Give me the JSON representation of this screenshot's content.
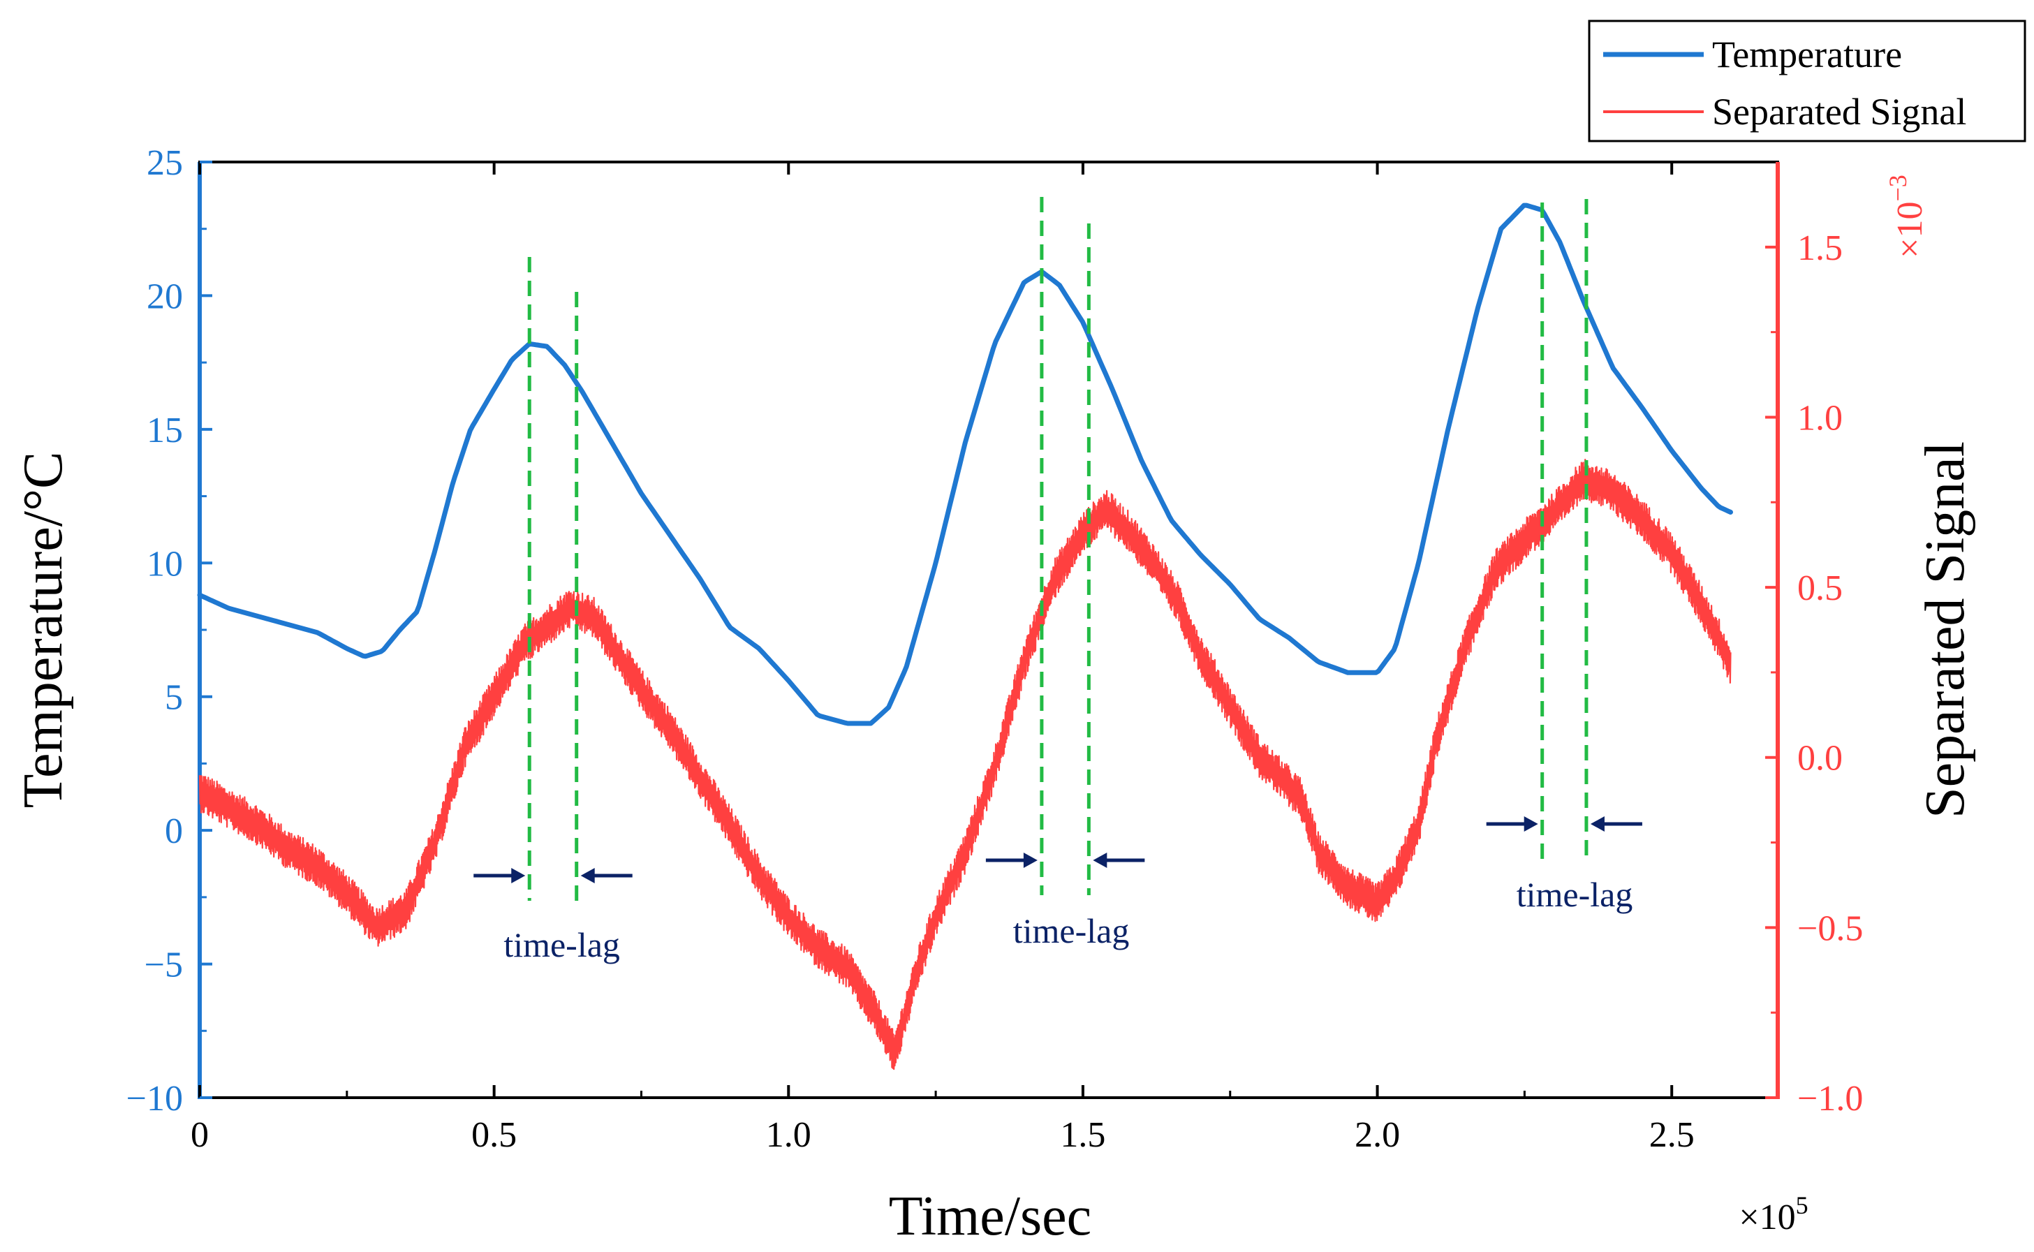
{
  "chart_data": {
    "type": "line",
    "xlabel": "Time/sec",
    "x_multiplier": "×10",
    "x_multiplier_exp": "5",
    "xlim": [
      0,
      2.68
    ],
    "x_ticks": [
      {
        "value": 0,
        "label": "0"
      },
      {
        "value": 0.5,
        "label": "0.5"
      },
      {
        "value": 1.0,
        "label": "1.0"
      },
      {
        "value": 1.5,
        "label": "1.5"
      },
      {
        "value": 2.0,
        "label": "2.0"
      },
      {
        "value": 2.5,
        "label": "2.5"
      }
    ],
    "y_left": {
      "label": "Temperature/°C",
      "lim": [
        -10,
        25
      ],
      "ticks": [
        {
          "value": -10,
          "label": "−10"
        },
        {
          "value": -5,
          "label": "−5"
        },
        {
          "value": 0,
          "label": "0"
        },
        {
          "value": 5,
          "label": "5"
        },
        {
          "value": 10,
          "label": "10"
        },
        {
          "value": 15,
          "label": "15"
        },
        {
          "value": 20,
          "label": "20"
        },
        {
          "value": 25,
          "label": "25"
        }
      ],
      "color": "#1f78d1"
    },
    "y_right": {
      "label": "Separated Signal",
      "multiplier": "×10",
      "multiplier_exp": "−3",
      "lim": [
        -1.0,
        1.75
      ],
      "ticks": [
        {
          "value": -1.0,
          "label": "−1.0"
        },
        {
          "value": -0.5,
          "label": "−0.5"
        },
        {
          "value": 0.0,
          "label": "0.0"
        },
        {
          "value": 0.5,
          "label": "0.5"
        },
        {
          "value": 1.0,
          "label": "1.0"
        },
        {
          "value": 1.5,
          "label": "1.5"
        }
      ],
      "color": "#ff4040"
    },
    "series": [
      {
        "name": "Temperature",
        "axis": "left",
        "color": "#1f78d1",
        "points": [
          [
            0,
            8.8
          ],
          [
            0.05,
            8.3
          ],
          [
            0.1,
            8.0
          ],
          [
            0.15,
            7.7
          ],
          [
            0.2,
            7.4
          ],
          [
            0.25,
            6.8
          ],
          [
            0.28,
            6.5
          ],
          [
            0.31,
            6.7
          ],
          [
            0.34,
            7.5
          ],
          [
            0.37,
            8.2
          ],
          [
            0.4,
            10.5
          ],
          [
            0.43,
            13.0
          ],
          [
            0.46,
            15.0
          ],
          [
            0.5,
            16.5
          ],
          [
            0.53,
            17.6
          ],
          [
            0.56,
            18.2
          ],
          [
            0.59,
            18.1
          ],
          [
            0.62,
            17.4
          ],
          [
            0.65,
            16.4
          ],
          [
            0.7,
            14.5
          ],
          [
            0.75,
            12.6
          ],
          [
            0.8,
            11.0
          ],
          [
            0.85,
            9.4
          ],
          [
            0.9,
            7.6
          ],
          [
            0.95,
            6.8
          ],
          [
            1.0,
            5.6
          ],
          [
            1.05,
            4.3
          ],
          [
            1.1,
            4.0
          ],
          [
            1.14,
            4.0
          ],
          [
            1.17,
            4.6
          ],
          [
            1.2,
            6.1
          ],
          [
            1.25,
            10.0
          ],
          [
            1.3,
            14.5
          ],
          [
            1.35,
            18.2
          ],
          [
            1.4,
            20.5
          ],
          [
            1.43,
            20.9
          ],
          [
            1.46,
            20.4
          ],
          [
            1.5,
            19.0
          ],
          [
            1.55,
            16.5
          ],
          [
            1.6,
            13.8
          ],
          [
            1.65,
            11.6
          ],
          [
            1.7,
            10.3
          ],
          [
            1.75,
            9.2
          ],
          [
            1.8,
            7.9
          ],
          [
            1.85,
            7.2
          ],
          [
            1.9,
            6.3
          ],
          [
            1.95,
            5.9
          ],
          [
            2.0,
            5.9
          ],
          [
            2.03,
            6.8
          ],
          [
            2.07,
            10.0
          ],
          [
            2.12,
            15.0
          ],
          [
            2.17,
            19.5
          ],
          [
            2.21,
            22.5
          ],
          [
            2.25,
            23.4
          ],
          [
            2.28,
            23.2
          ],
          [
            2.31,
            22.0
          ],
          [
            2.35,
            19.8
          ],
          [
            2.4,
            17.3
          ],
          [
            2.45,
            15.8
          ],
          [
            2.5,
            14.2
          ],
          [
            2.55,
            12.8
          ],
          [
            2.58,
            12.1
          ],
          [
            2.6,
            11.9
          ]
        ]
      },
      {
        "name": "Separated Signal",
        "axis": "right",
        "color": "#ff4040",
        "noise_amplitude": 0.05,
        "points": [
          [
            0,
            -0.1
          ],
          [
            0.05,
            -0.15
          ],
          [
            0.1,
            -0.2
          ],
          [
            0.15,
            -0.27
          ],
          [
            0.2,
            -0.32
          ],
          [
            0.25,
            -0.4
          ],
          [
            0.3,
            -0.5
          ],
          [
            0.35,
            -0.45
          ],
          [
            0.4,
            -0.25
          ],
          [
            0.45,
            0.03
          ],
          [
            0.5,
            0.18
          ],
          [
            0.55,
            0.33
          ],
          [
            0.6,
            0.4
          ],
          [
            0.63,
            0.44
          ],
          [
            0.67,
            0.41
          ],
          [
            0.7,
            0.33
          ],
          [
            0.75,
            0.2
          ],
          [
            0.8,
            0.08
          ],
          [
            0.85,
            -0.06
          ],
          [
            0.9,
            -0.2
          ],
          [
            0.95,
            -0.35
          ],
          [
            1.0,
            -0.47
          ],
          [
            1.05,
            -0.56
          ],
          [
            1.1,
            -0.62
          ],
          [
            1.15,
            -0.76
          ],
          [
            1.18,
            -0.87
          ],
          [
            1.22,
            -0.62
          ],
          [
            1.25,
            -0.47
          ],
          [
            1.3,
            -0.28
          ],
          [
            1.35,
            -0.03
          ],
          [
            1.4,
            0.28
          ],
          [
            1.45,
            0.52
          ],
          [
            1.5,
            0.66
          ],
          [
            1.54,
            0.73
          ],
          [
            1.58,
            0.66
          ],
          [
            1.62,
            0.57
          ],
          [
            1.66,
            0.46
          ],
          [
            1.7,
            0.3
          ],
          [
            1.75,
            0.15
          ],
          [
            1.8,
            0.0
          ],
          [
            1.83,
            -0.05
          ],
          [
            1.87,
            -0.12
          ],
          [
            1.9,
            -0.28
          ],
          [
            1.95,
            -0.38
          ],
          [
            2.0,
            -0.43
          ],
          [
            2.03,
            -0.36
          ],
          [
            2.07,
            -0.2
          ],
          [
            2.1,
            0.05
          ],
          [
            2.15,
            0.33
          ],
          [
            2.2,
            0.55
          ],
          [
            2.25,
            0.64
          ],
          [
            2.3,
            0.72
          ],
          [
            2.35,
            0.82
          ],
          [
            2.4,
            0.78
          ],
          [
            2.45,
            0.7
          ],
          [
            2.5,
            0.6
          ],
          [
            2.55,
            0.45
          ],
          [
            2.58,
            0.35
          ],
          [
            2.6,
            0.27
          ]
        ]
      }
    ],
    "legend": {
      "placement": "top-right",
      "entries": [
        {
          "label": "Temperature",
          "color": "#1f78d1"
        },
        {
          "label": "Separated Signal",
          "color": "#ff4040"
        }
      ]
    },
    "guide_color": "#22bb44",
    "arrow_color": "#0b2266",
    "guides": [
      {
        "x1": 0.56,
        "x2": 0.64
      },
      {
        "x1": 1.43,
        "x2": 1.51
      },
      {
        "x1": 2.28,
        "x2": 2.355
      }
    ],
    "annotations": [
      {
        "text": "time-lag",
        "x": 0.615
      },
      {
        "text": "time-lag",
        "x": 1.48
      },
      {
        "text": "time-lag",
        "x": 2.335
      }
    ],
    "grid": false
  }
}
